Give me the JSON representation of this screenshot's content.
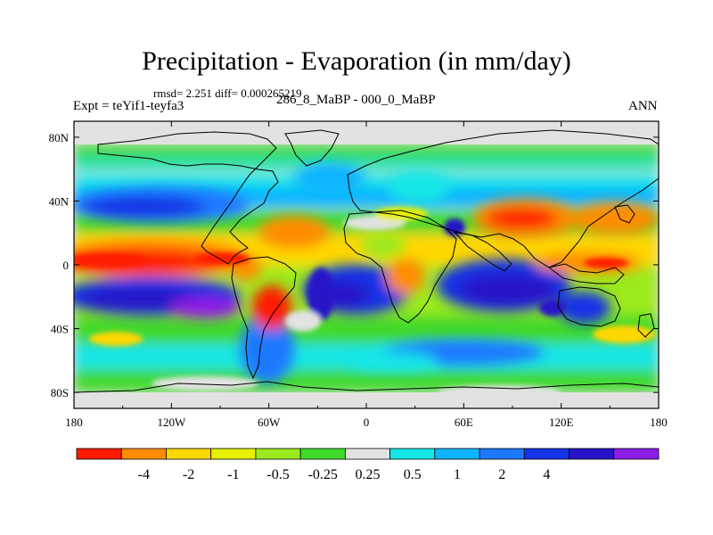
{
  "title": "Precipitation - Evaporation (in mm/day)",
  "stats": "rmsd= 2.251 diff= 0.000265219",
  "left_label": "Expt = teYif1-teyfa3",
  "center_label": "286_8_MaBP - 000_0_MaBP",
  "right_label": "ANN",
  "map": {
    "background": "#e2e2e2",
    "y_axis": {
      "ticks": [
        "80N",
        "40N",
        "0",
        "40S",
        "80S"
      ],
      "lat_values": [
        80,
        40,
        0,
        -40,
        -80
      ]
    },
    "x_axis": {
      "ticks": [
        "180",
        "120W",
        "60W",
        "0",
        "60E",
        "120E",
        "180"
      ],
      "lon_values": [
        -180,
        -120,
        -60,
        0,
        60,
        120,
        180
      ]
    },
    "lat_range": [
      -90,
      90
    ],
    "lon_range": [
      -180,
      180
    ]
  },
  "colorbar": {
    "colors": [
      "#ff1a00",
      "#ff8c00",
      "#ffd700",
      "#e6f000",
      "#9bea1f",
      "#3fd92c",
      "#e2e2e2",
      "#14e6e6",
      "#0fb4ff",
      "#1e78ff",
      "#1432e6",
      "#2814c8",
      "#8c1ee6"
    ],
    "labels": [
      "-4",
      "-2",
      "-1",
      "-0.5",
      "-0.25",
      "0.25",
      "0.5",
      "1",
      "2",
      "4"
    ]
  }
}
